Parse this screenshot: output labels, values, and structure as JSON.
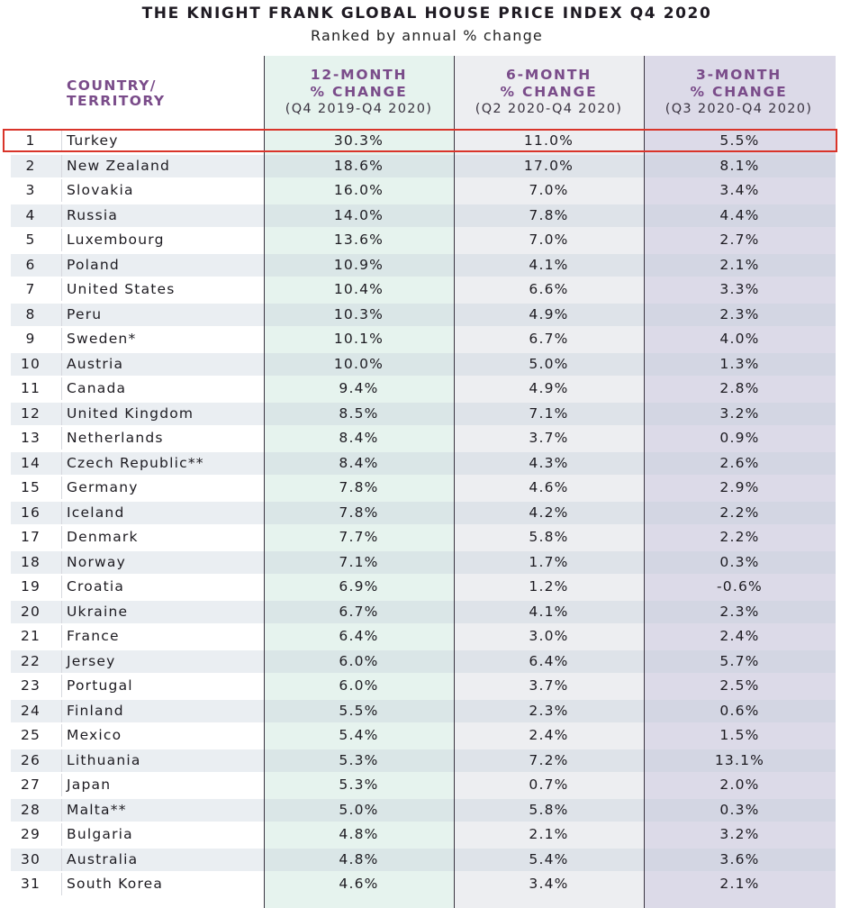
{
  "header": {
    "title": "THE KNIGHT FRANK GLOBAL HOUSE PRICE INDEX Q4 2020",
    "subtitle": "Ranked by annual % change",
    "country_label_line1": "COUNTRY/",
    "country_label_line2": "TERRITORY",
    "col1_line1": "12-MONTH",
    "col1_line2": "% CHANGE",
    "col1_period": "(Q4 2019-Q4 2020)",
    "col2_line1": "6-MONTH",
    "col2_line2": "% CHANGE",
    "col2_period": "(Q2 2020-Q4 2020)",
    "col3_line1": "3-MONTH",
    "col3_line2": "% CHANGE",
    "col3_period": "(Q3 2020-Q4 2020)"
  },
  "colors": {
    "header_accent": "#7a4c8a",
    "col1_bg": "#e6f3ee",
    "col2_bg": "#edeef1",
    "col3_bg": "#dcdae8",
    "highlight_border": "#d9342a"
  },
  "chart_data": {
    "type": "table",
    "title": "THE KNIGHT FRANK GLOBAL HOUSE PRICE INDEX Q4 2020",
    "subtitle": "Ranked by annual % change",
    "columns": [
      "COUNTRY/TERRITORY",
      "12-MONTH % CHANGE (Q4 2019-Q4 2020)",
      "6-MONTH % CHANGE (Q2 2020-Q4 2020)",
      "3-MONTH % CHANGE (Q3 2020-Q4 2020)"
    ],
    "highlighted_rank": "1",
    "rows": [
      {
        "rank": "1",
        "country": "Turkey",
        "m12": "30.3%",
        "m6": "11.0%",
        "m3": "5.5%"
      },
      {
        "rank": "2",
        "country": "New Zealand",
        "m12": "18.6%",
        "m6": "17.0%",
        "m3": "8.1%"
      },
      {
        "rank": "3",
        "country": "Slovakia",
        "m12": "16.0%",
        "m6": "7.0%",
        "m3": "3.4%"
      },
      {
        "rank": "4",
        "country": "Russia",
        "m12": "14.0%",
        "m6": "7.8%",
        "m3": "4.4%"
      },
      {
        "rank": "5",
        "country": "Luxembourg",
        "m12": "13.6%",
        "m6": "7.0%",
        "m3": "2.7%"
      },
      {
        "rank": "6",
        "country": "Poland",
        "m12": "10.9%",
        "m6": "4.1%",
        "m3": "2.1%"
      },
      {
        "rank": "7",
        "country": "United States",
        "m12": "10.4%",
        "m6": "6.6%",
        "m3": "3.3%"
      },
      {
        "rank": "8",
        "country": "Peru",
        "m12": "10.3%",
        "m6": "4.9%",
        "m3": "2.3%"
      },
      {
        "rank": "9",
        "country": "Sweden*",
        "m12": "10.1%",
        "m6": "6.7%",
        "m3": "4.0%"
      },
      {
        "rank": "10",
        "country": "Austria",
        "m12": "10.0%",
        "m6": "5.0%",
        "m3": "1.3%"
      },
      {
        "rank": "11",
        "country": "Canada",
        "m12": "9.4%",
        "m6": "4.9%",
        "m3": "2.8%"
      },
      {
        "rank": "12",
        "country": "United Kingdom",
        "m12": "8.5%",
        "m6": "7.1%",
        "m3": "3.2%"
      },
      {
        "rank": "13",
        "country": "Netherlands",
        "m12": "8.4%",
        "m6": "3.7%",
        "m3": "0.9%"
      },
      {
        "rank": "14",
        "country": "Czech Republic**",
        "m12": "8.4%",
        "m6": "4.3%",
        "m3": "2.6%"
      },
      {
        "rank": "15",
        "country": "Germany",
        "m12": "7.8%",
        "m6": "4.6%",
        "m3": "2.9%"
      },
      {
        "rank": "16",
        "country": "Iceland",
        "m12": "7.8%",
        "m6": "4.2%",
        "m3": "2.2%"
      },
      {
        "rank": "17",
        "country": "Denmark",
        "m12": "7.7%",
        "m6": "5.8%",
        "m3": "2.2%"
      },
      {
        "rank": "18",
        "country": "Norway",
        "m12": "7.1%",
        "m6": "1.7%",
        "m3": "0.3%"
      },
      {
        "rank": "19",
        "country": "Croatia",
        "m12": "6.9%",
        "m6": "1.2%",
        "m3": "-0.6%"
      },
      {
        "rank": "20",
        "country": "Ukraine",
        "m12": "6.7%",
        "m6": "4.1%",
        "m3": "2.3%"
      },
      {
        "rank": "21",
        "country": "France",
        "m12": "6.4%",
        "m6": "3.0%",
        "m3": "2.4%"
      },
      {
        "rank": "22",
        "country": "Jersey",
        "m12": "6.0%",
        "m6": "6.4%",
        "m3": "5.7%"
      },
      {
        "rank": "23",
        "country": "Portugal",
        "m12": "6.0%",
        "m6": "3.7%",
        "m3": "2.5%"
      },
      {
        "rank": "24",
        "country": "Finland",
        "m12": "5.5%",
        "m6": "2.3%",
        "m3": "0.6%"
      },
      {
        "rank": "25",
        "country": "Mexico",
        "m12": "5.4%",
        "m6": "2.4%",
        "m3": "1.5%"
      },
      {
        "rank": "26",
        "country": "Lithuania",
        "m12": "5.3%",
        "m6": "7.2%",
        "m3": "13.1%"
      },
      {
        "rank": "27",
        "country": "Japan",
        "m12": "5.3%",
        "m6": "0.7%",
        "m3": "2.0%"
      },
      {
        "rank": "28",
        "country": "Malta**",
        "m12": "5.0%",
        "m6": "5.8%",
        "m3": "0.3%"
      },
      {
        "rank": "29",
        "country": "Bulgaria",
        "m12": "4.8%",
        "m6": "2.1%",
        "m3": "3.2%"
      },
      {
        "rank": "30",
        "country": "Australia",
        "m12": "4.8%",
        "m6": "5.4%",
        "m3": "3.6%"
      },
      {
        "rank": "31",
        "country": "South Korea",
        "m12": "4.6%",
        "m6": "3.4%",
        "m3": "2.1%"
      }
    ]
  }
}
